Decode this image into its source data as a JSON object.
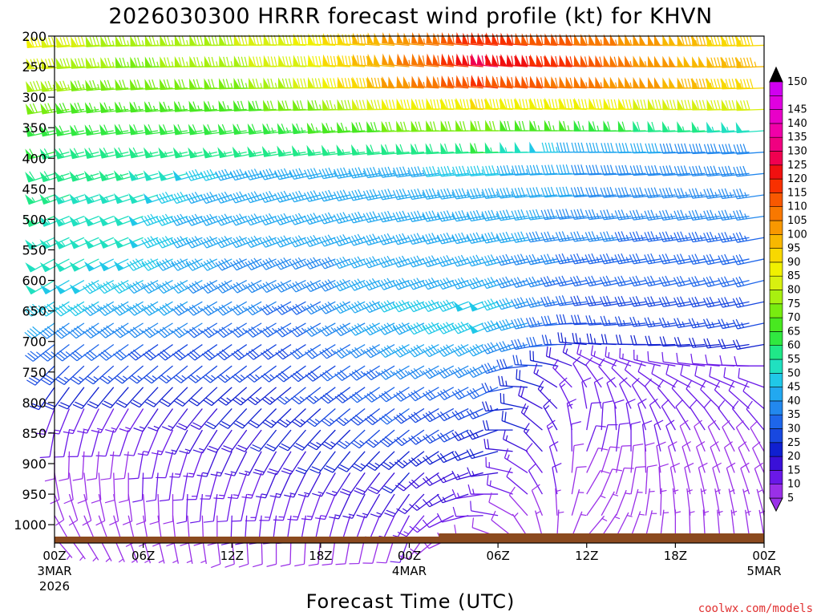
{
  "chart_data": {
    "type": "wind-barb time-height",
    "title": "2026030300 HRRR forecast wind profile (kt) for KHVN",
    "xlabel": "Forecast Time (UTC)",
    "credit": "coolwx.com/models",
    "y_axis": {
      "units": "hPa",
      "range": [
        1030,
        200
      ],
      "ticks": [
        200,
        250,
        300,
        350,
        400,
        450,
        500,
        550,
        600,
        650,
        700,
        750,
        800,
        850,
        900,
        950,
        1000
      ]
    },
    "x_axis": {
      "units": "forecast hour",
      "range": [
        0,
        48
      ],
      "ticks": [
        {
          "hour": 0,
          "label": "00Z",
          "sub": "3MAR",
          "sub2": "2026"
        },
        {
          "hour": 6,
          "label": "06Z"
        },
        {
          "hour": 12,
          "label": "12Z"
        },
        {
          "hour": 18,
          "label": "18Z"
        },
        {
          "hour": 24,
          "label": "00Z",
          "sub": "4MAR"
        },
        {
          "hour": 30,
          "label": "06Z"
        },
        {
          "hour": 36,
          "label": "12Z"
        },
        {
          "hour": 42,
          "label": "18Z"
        },
        {
          "hour": 48,
          "label": "00Z",
          "sub": "5MAR"
        }
      ]
    },
    "colorbar": {
      "units": "kt",
      "levels": [
        5,
        10,
        15,
        20,
        25,
        30,
        35,
        40,
        45,
        50,
        55,
        60,
        65,
        70,
        75,
        80,
        85,
        90,
        95,
        100,
        105,
        110,
        115,
        120,
        125,
        130,
        135,
        140,
        145,
        150
      ],
      "colors": [
        "#9a30e8",
        "#6a18e8",
        "#3a10d8",
        "#1020d0",
        "#1848e0",
        "#1e66ea",
        "#2288ee",
        "#22a8f0",
        "#20c8e8",
        "#20e0c0",
        "#20e888",
        "#30e840",
        "#48e820",
        "#78ec10",
        "#a8f010",
        "#d8f010",
        "#f0f000",
        "#f8d800",
        "#f8b800",
        "#f89800",
        "#f87800",
        "#f85800",
        "#f83000",
        "#f01010",
        "#f00050",
        "#f00080",
        "#f000a8",
        "#e800c8",
        "#e000e0",
        "#d000f0"
      ]
    },
    "wind_levels_hPa": [
      215,
      250,
      285,
      320,
      355,
      390,
      425,
      460,
      495,
      530,
      565,
      600,
      635,
      670,
      705,
      740,
      775,
      810,
      845,
      880,
      915,
      950,
      985,
      1020
    ],
    "wind_speed_kt_sampled": {
      "note": "approximate speed (kt) at each level (rows, top to bottom) for hours 0,6,12,18,24,30,36,42,48",
      "hours": [
        0,
        6,
        12,
        18,
        24,
        30,
        36,
        42,
        48
      ],
      "rows": [
        [
          85,
          75,
          78,
          85,
          100,
          118,
          110,
          100,
          92
        ],
        [
          82,
          74,
          76,
          84,
          102,
          125,
          115,
          102,
          95
        ],
        [
          78,
          70,
          72,
          80,
          100,
          115,
          108,
          100,
          92
        ],
        [
          72,
          65,
          66,
          72,
          85,
          90,
          88,
          84,
          80
        ],
        [
          62,
          60,
          60,
          64,
          70,
          72,
          65,
          58,
          52
        ],
        [
          60,
          58,
          55,
          55,
          58,
          60,
          42,
          40,
          38
        ],
        [
          58,
          55,
          45,
          42,
          44,
          46,
          40,
          38,
          38
        ],
        [
          56,
          52,
          42,
          42,
          42,
          44,
          40,
          38,
          36
        ],
        [
          55,
          50,
          42,
          40,
          42,
          44,
          38,
          36,
          35
        ],
        [
          54,
          50,
          40,
          40,
          42,
          44,
          36,
          34,
          34
        ],
        [
          52,
          48,
          40,
          38,
          42,
          42,
          34,
          32,
          32
        ],
        [
          50,
          46,
          38,
          36,
          44,
          42,
          32,
          30,
          30
        ],
        [
          46,
          44,
          36,
          34,
          46,
          48,
          30,
          28,
          28
        ],
        [
          40,
          38,
          34,
          34,
          44,
          48,
          28,
          26,
          26
        ],
        [
          34,
          30,
          28,
          30,
          40,
          42,
          24,
          20,
          20
        ],
        [
          28,
          25,
          26,
          28,
          36,
          36,
          15,
          12,
          12
        ],
        [
          22,
          20,
          22,
          26,
          32,
          30,
          10,
          10,
          10
        ],
        [
          14,
          14,
          20,
          24,
          30,
          26,
          10,
          10,
          10
        ],
        [
          10,
          12,
          18,
          22,
          28,
          24,
          12,
          10,
          10
        ],
        [
          8,
          10,
          16,
          20,
          24,
          20,
          10,
          10,
          8
        ],
        [
          8,
          10,
          14,
          16,
          20,
          16,
          8,
          8,
          8
        ],
        [
          8,
          8,
          12,
          14,
          18,
          14,
          8,
          8,
          8
        ],
        [
          6,
          8,
          10,
          12,
          14,
          10,
          6,
          6,
          6
        ],
        [
          5,
          6,
          8,
          8,
          10,
          8,
          5,
          5,
          5
        ]
      ]
    },
    "wind_dir_deg_sampled": {
      "note": "approximate meteorological direction (deg, from) for the same grid",
      "rows": [
        [
          265,
          268,
          270,
          272,
          275,
          275,
          272,
          270,
          268
        ],
        [
          265,
          268,
          270,
          272,
          275,
          275,
          272,
          270,
          268
        ],
        [
          262,
          266,
          268,
          270,
          272,
          275,
          272,
          270,
          268
        ],
        [
          260,
          264,
          266,
          268,
          270,
          272,
          272,
          270,
          268
        ],
        [
          258,
          262,
          262,
          264,
          268,
          270,
          270,
          268,
          266
        ],
        [
          255,
          258,
          258,
          262,
          265,
          268,
          270,
          268,
          266
        ],
        [
          252,
          255,
          255,
          258,
          262,
          265,
          268,
          266,
          264
        ],
        [
          250,
          252,
          252,
          255,
          260,
          262,
          266,
          264,
          262
        ],
        [
          248,
          250,
          250,
          252,
          258,
          260,
          264,
          262,
          262
        ],
        [
          245,
          248,
          248,
          250,
          255,
          258,
          262,
          262,
          260
        ],
        [
          242,
          245,
          245,
          248,
          252,
          255,
          260,
          260,
          258
        ],
        [
          240,
          242,
          242,
          245,
          250,
          252,
          258,
          258,
          256
        ],
        [
          238,
          240,
          240,
          242,
          248,
          250,
          262,
          260,
          258
        ],
        [
          235,
          238,
          238,
          240,
          245,
          248,
          268,
          262,
          258
        ],
        [
          232,
          235,
          235,
          238,
          242,
          245,
          275,
          268,
          260
        ],
        [
          225,
          230,
          232,
          235,
          240,
          245,
          300,
          280,
          270
        ],
        [
          215,
          222,
          228,
          232,
          238,
          245,
          330,
          300,
          290
        ],
        [
          200,
          212,
          222,
          228,
          235,
          248,
          350,
          320,
          310
        ],
        [
          190,
          200,
          215,
          222,
          232,
          250,
          10,
          330,
          320
        ],
        [
          180,
          190,
          205,
          215,
          228,
          255,
          20,
          340,
          330
        ],
        [
          170,
          182,
          198,
          208,
          222,
          262,
          25,
          345,
          335
        ],
        [
          160,
          175,
          190,
          200,
          215,
          270,
          30,
          350,
          340
        ],
        [
          150,
          170,
          182,
          192,
          208,
          280,
          35,
          355,
          345
        ],
        [
          140,
          165,
          175,
          185,
          200,
          290,
          40,
          0,
          350
        ]
      ]
    }
  }
}
